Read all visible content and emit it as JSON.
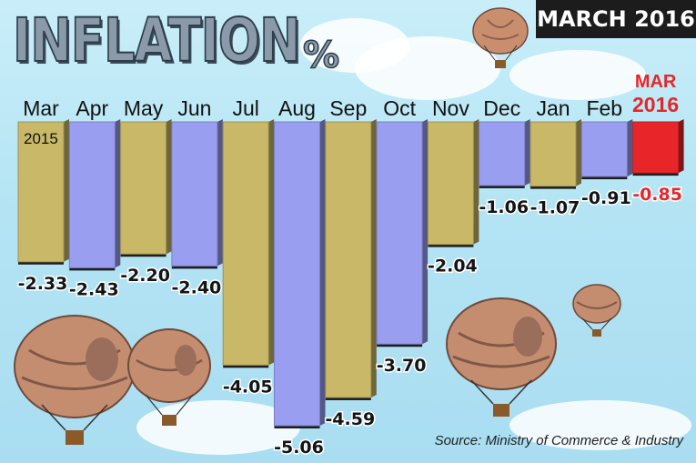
{
  "banner": "MARCH 2016",
  "title": "INFLATION",
  "title_unit": "%",
  "source": "Source: Ministry of Commerce & Industry",
  "colors": {
    "gold": "#c8b868",
    "lavender": "#9a9ef0",
    "highlight": "#e8262a",
    "background": "#b9e6f6"
  },
  "chart_data": {
    "type": "bar",
    "title": "INFLATION",
    "unit": "%",
    "categories": [
      "Mar",
      "Apr",
      "May",
      "Jun",
      "Jul",
      "Aug",
      "Sep",
      "Oct",
      "Nov",
      "Dec",
      "Jan",
      "Feb",
      "MAR 2016"
    ],
    "category_sublabels": [
      "2015",
      "",
      "",
      "",
      "",
      "",
      "",
      "",
      "",
      "",
      "",
      "",
      ""
    ],
    "values": [
      -2.33,
      -2.43,
      -2.2,
      -2.4,
      -4.05,
      -5.06,
      -4.59,
      -3.7,
      -2.04,
      -1.06,
      -1.07,
      -0.91,
      -0.85
    ],
    "value_labels": [
      "-2.33",
      "-2.43",
      "-2.20",
      "-2.40",
      "-4.05",
      "-5.06",
      "-4.59",
      "-3.70",
      "-2.04",
      "-1.06",
      "-1.07",
      "-0.91",
      "-0.85"
    ],
    "bar_colors": [
      "gold",
      "lavender",
      "gold",
      "lavender",
      "gold",
      "lavender",
      "gold",
      "lavender",
      "gold",
      "lavender",
      "gold",
      "lavender",
      "highlight"
    ],
    "highlight_index": 12,
    "ylim": [
      -5.06,
      0
    ],
    "grid": false,
    "legend": "none"
  }
}
